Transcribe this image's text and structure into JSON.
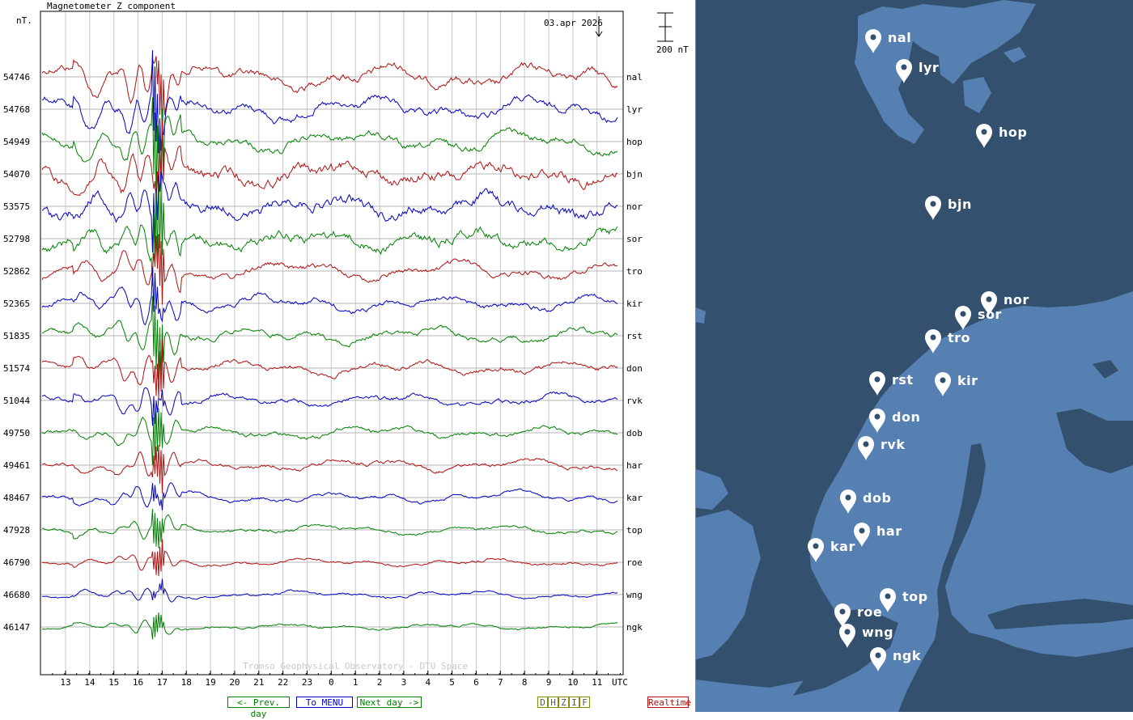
{
  "chart_data": {
    "type": "line",
    "title": "Magnetometer Z component",
    "unit_label": "nT.",
    "date": "03.apr 2026",
    "scale_bar_label": "200 nT",
    "utc_label": "UTC",
    "watermark": "Tromso Geophysical Observatory - DTU Space",
    "x_ticks": [
      "13",
      "14",
      "15",
      "16",
      "17",
      "18",
      "19",
      "20",
      "21",
      "22",
      "23",
      "0",
      "1",
      "2",
      "3",
      "4",
      "5",
      "6",
      "7",
      "8",
      "9",
      "10",
      "11"
    ],
    "series": [
      {
        "name": "nal",
        "baseline": "54746",
        "color": "#b01010"
      },
      {
        "name": "lyr",
        "baseline": "54768",
        "color": "#0000c0"
      },
      {
        "name": "hop",
        "baseline": "54949",
        "color": "#008000"
      },
      {
        "name": "bjn",
        "baseline": "54070",
        "color": "#b01010"
      },
      {
        "name": "nor",
        "baseline": "53575",
        "color": "#0000c0"
      },
      {
        "name": "sor",
        "baseline": "52798",
        "color": "#008000"
      },
      {
        "name": "tro",
        "baseline": "52862",
        "color": "#b01010"
      },
      {
        "name": "kir",
        "baseline": "52365",
        "color": "#0000c0"
      },
      {
        "name": "rst",
        "baseline": "51835",
        "color": "#008000"
      },
      {
        "name": "don",
        "baseline": "51574",
        "color": "#b01010"
      },
      {
        "name": "rvk",
        "baseline": "51044",
        "color": "#0000c0"
      },
      {
        "name": "dob",
        "baseline": "49750",
        "color": "#008000"
      },
      {
        "name": "har",
        "baseline": "49461",
        "color": "#b01010"
      },
      {
        "name": "kar",
        "baseline": "48467",
        "color": "#0000c0"
      },
      {
        "name": "top",
        "baseline": "47928",
        "color": "#008000"
      },
      {
        "name": "roe",
        "baseline": "46790",
        "color": "#b01010"
      },
      {
        "name": "wng",
        "baseline": "46680",
        "color": "#0000c0"
      },
      {
        "name": "ngk",
        "baseline": "46147",
        "color": "#008000"
      }
    ]
  },
  "nav": {
    "prev_day": "<- Prev. day",
    "menu": "To MENU",
    "next_day": "Next day ->",
    "components": [
      "D",
      "H",
      "Z",
      "I",
      "F"
    ],
    "realtime": "Realtime"
  },
  "map": {
    "stations": [
      "nal",
      "lyr",
      "hop",
      "bjn",
      "nor",
      "sor",
      "tro",
      "rst",
      "kir",
      "don",
      "rvk",
      "dob",
      "har",
      "kar",
      "top",
      "roe",
      "wng",
      "ngk"
    ]
  },
  "colors": {
    "red": "#b01010",
    "blue": "#0000c0",
    "green": "#008000",
    "map_sea": "#33506e",
    "map_land": "#5680b2"
  }
}
